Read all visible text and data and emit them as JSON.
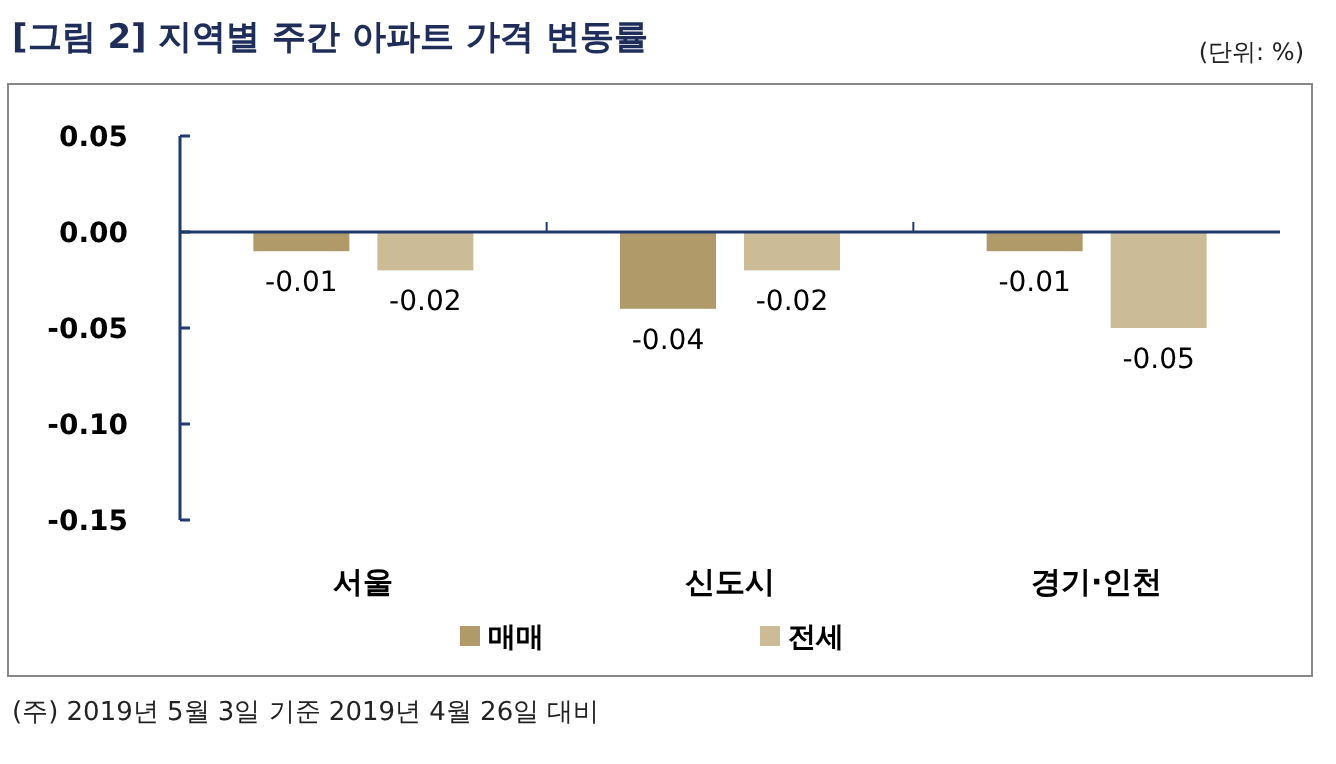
{
  "chart_data": {
    "type": "bar",
    "title": "[그림 2] 지역별 주간 아파트 가격 변동률",
    "categories": [
      "서울",
      "신도시",
      "경기·인천"
    ],
    "series": [
      {
        "name": "매매",
        "color": "#b09a6a",
        "values": [
          -0.01,
          -0.04,
          -0.01
        ]
      },
      {
        "name": "전세",
        "color": "#cbbc97",
        "values": [
          -0.02,
          -0.02,
          -0.05
        ]
      }
    ],
    "ylim": [
      -0.15,
      0.05
    ],
    "yticks": [
      {
        "value": 0.05,
        "label": "0.05"
      },
      {
        "value": 0,
        "label": "0.00"
      },
      {
        "value": -0.05,
        "label": "-0.05"
      },
      {
        "value": -0.1,
        "label": "-0.10"
      },
      {
        "value": -0.15,
        "label": "-0.15"
      }
    ],
    "ref_lines": [
      {
        "axis": "y",
        "value": 0,
        "color": "#1f3a6e"
      }
    ],
    "data_labels": true,
    "legend": "bottom",
    "grid": false,
    "annotations": [
      "(단위: %)",
      "(주) 2019년 5월 3일 기준 2019년 4월 26일 대비"
    ]
  }
}
